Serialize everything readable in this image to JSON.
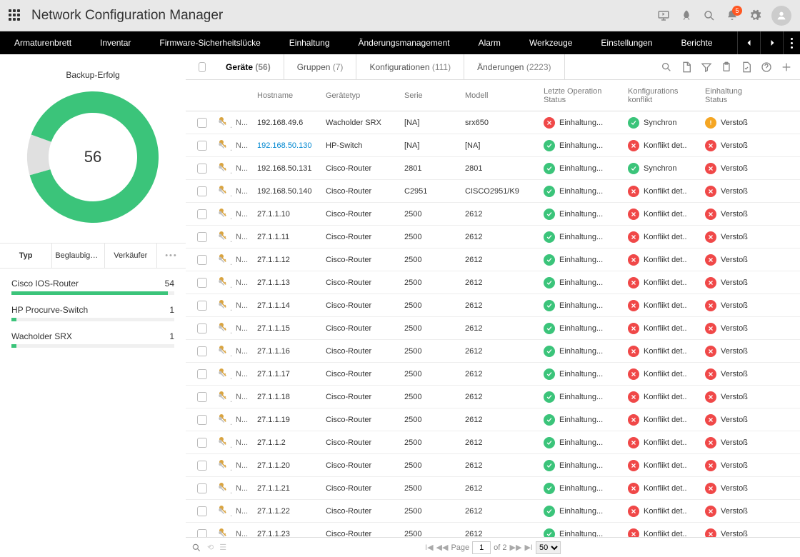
{
  "header": {
    "title": "Network Configuration Manager",
    "notification_count": "5"
  },
  "nav": {
    "items": [
      "Armaturenbrett",
      "Inventar",
      "Firmware-Sicherheitslücke",
      "Einhaltung",
      "Änderungsmanagement",
      "Alarm",
      "Werkzeuge",
      "Einstellungen",
      "Berichte"
    ]
  },
  "sidebar": {
    "donut": {
      "title": "Backup-Erfolg",
      "value": "56",
      "success_pct": 90,
      "colors": {
        "success": "#3bc47a",
        "fail": "#e0e0e0",
        "bg": "#ffffff"
      },
      "stroke_width": 30
    },
    "tabs": [
      "Typ",
      "Beglaubigung...",
      "Verkäufer"
    ],
    "types": [
      {
        "label": "Cisco IOS-Router",
        "count": "54",
        "pct": 96
      },
      {
        "label": "HP Procurve-Switch",
        "count": "1",
        "pct": 3
      },
      {
        "label": "Wacholder SRX",
        "count": "1",
        "pct": 3
      }
    ]
  },
  "tabs": [
    {
      "label": "Geräte",
      "count": "(56)",
      "active": true
    },
    {
      "label": "Gruppen",
      "count": "(7)",
      "active": false
    },
    {
      "label": "Konfigurationen",
      "count": "(111)",
      "active": false
    },
    {
      "label": "Änderungen",
      "count": "(2223)",
      "active": false
    }
  ],
  "columns": {
    "hostname": "Hostname",
    "type": "Gerätetyp",
    "serie": "Serie",
    "model": "Modell",
    "op": "Letzte Operation Status",
    "conf": "Konfigurations konflikt",
    "comp": "Einhaltung Status"
  },
  "status_labels": {
    "einhaltung": "Einhaltung...",
    "synchron": "Synchron",
    "konflikt": "Konflikt det..",
    "verstoss": "Verstoß"
  },
  "colors": {
    "ok": "#3bc47a",
    "err": "#f04848",
    "warn": "#f5a623",
    "link": "#0288d1"
  },
  "devices": [
    {
      "n": "N...",
      "host": "192.168.49.6",
      "link": false,
      "type": "Wacholder SRX",
      "serie": "[NA]",
      "model": "srx650",
      "op": "err",
      "conf": "ok",
      "conf_label": "synchron",
      "comp": "warn"
    },
    {
      "n": "N...",
      "host": "192.168.50.130",
      "link": true,
      "type": "HP-Switch",
      "serie": "[NA]",
      "model": "[NA]",
      "op": "ok",
      "conf": "err",
      "conf_label": "konflikt",
      "comp": "err"
    },
    {
      "n": "N...",
      "host": "192.168.50.131",
      "link": false,
      "type": "Cisco-Router",
      "serie": "2801",
      "model": "2801",
      "op": "ok",
      "conf": "ok",
      "conf_label": "synchron",
      "comp": "err"
    },
    {
      "n": "N...",
      "host": "192.168.50.140",
      "link": false,
      "type": "Cisco-Router",
      "serie": "C2951",
      "model": "CISCO2951/K9",
      "op": "ok",
      "conf": "err",
      "conf_label": "konflikt",
      "comp": "err"
    },
    {
      "n": "N...",
      "host": "27.1.1.10",
      "link": false,
      "type": "Cisco-Router",
      "serie": "2500",
      "model": "2612",
      "op": "ok",
      "conf": "err",
      "conf_label": "konflikt",
      "comp": "err"
    },
    {
      "n": "N...",
      "host": "27.1.1.11",
      "link": false,
      "type": "Cisco-Router",
      "serie": "2500",
      "model": "2612",
      "op": "ok",
      "conf": "err",
      "conf_label": "konflikt",
      "comp": "err"
    },
    {
      "n": "N...",
      "host": "27.1.1.12",
      "link": false,
      "type": "Cisco-Router",
      "serie": "2500",
      "model": "2612",
      "op": "ok",
      "conf": "err",
      "conf_label": "konflikt",
      "comp": "err"
    },
    {
      "n": "N...",
      "host": "27.1.1.13",
      "link": false,
      "type": "Cisco-Router",
      "serie": "2500",
      "model": "2612",
      "op": "ok",
      "conf": "err",
      "conf_label": "konflikt",
      "comp": "err"
    },
    {
      "n": "N...",
      "host": "27.1.1.14",
      "link": false,
      "type": "Cisco-Router",
      "serie": "2500",
      "model": "2612",
      "op": "ok",
      "conf": "err",
      "conf_label": "konflikt",
      "comp": "err"
    },
    {
      "n": "N...",
      "host": "27.1.1.15",
      "link": false,
      "type": "Cisco-Router",
      "serie": "2500",
      "model": "2612",
      "op": "ok",
      "conf": "err",
      "conf_label": "konflikt",
      "comp": "err"
    },
    {
      "n": "N...",
      "host": "27.1.1.16",
      "link": false,
      "type": "Cisco-Router",
      "serie": "2500",
      "model": "2612",
      "op": "ok",
      "conf": "err",
      "conf_label": "konflikt",
      "comp": "err"
    },
    {
      "n": "N...",
      "host": "27.1.1.17",
      "link": false,
      "type": "Cisco-Router",
      "serie": "2500",
      "model": "2612",
      "op": "ok",
      "conf": "err",
      "conf_label": "konflikt",
      "comp": "err"
    },
    {
      "n": "N...",
      "host": "27.1.1.18",
      "link": false,
      "type": "Cisco-Router",
      "serie": "2500",
      "model": "2612",
      "op": "ok",
      "conf": "err",
      "conf_label": "konflikt",
      "comp": "err"
    },
    {
      "n": "N...",
      "host": "27.1.1.19",
      "link": false,
      "type": "Cisco-Router",
      "serie": "2500",
      "model": "2612",
      "op": "ok",
      "conf": "err",
      "conf_label": "konflikt",
      "comp": "err"
    },
    {
      "n": "N...",
      "host": "27.1.1.2",
      "link": false,
      "type": "Cisco-Router",
      "serie": "2500",
      "model": "2612",
      "op": "ok",
      "conf": "err",
      "conf_label": "konflikt",
      "comp": "err"
    },
    {
      "n": "N...",
      "host": "27.1.1.20",
      "link": false,
      "type": "Cisco-Router",
      "serie": "2500",
      "model": "2612",
      "op": "ok",
      "conf": "err",
      "conf_label": "konflikt",
      "comp": "err"
    },
    {
      "n": "N...",
      "host": "27.1.1.21",
      "link": false,
      "type": "Cisco-Router",
      "serie": "2500",
      "model": "2612",
      "op": "ok",
      "conf": "err",
      "conf_label": "konflikt",
      "comp": "err"
    },
    {
      "n": "N...",
      "host": "27.1.1.22",
      "link": false,
      "type": "Cisco-Router",
      "serie": "2500",
      "model": "2612",
      "op": "ok",
      "conf": "err",
      "conf_label": "konflikt",
      "comp": "err"
    },
    {
      "n": "N...",
      "host": "27.1.1.23",
      "link": false,
      "type": "Cisco-Router",
      "serie": "2500",
      "model": "2612",
      "op": "ok",
      "conf": "err",
      "conf_label": "konflikt",
      "comp": "err"
    }
  ],
  "footer": {
    "page_label": "Page",
    "page": "1",
    "of": "of 2",
    "page_size": "50"
  }
}
